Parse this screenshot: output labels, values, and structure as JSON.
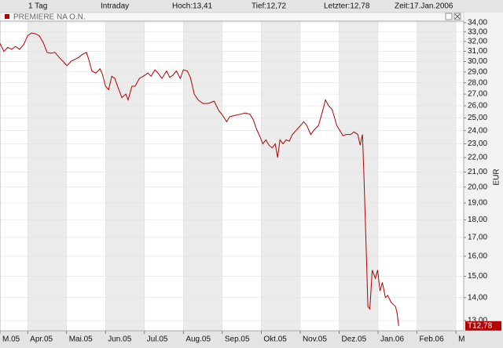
{
  "chart_data": {
    "type": "line",
    "toolbar": [
      "1 Tag",
      "Intraday",
      "Hoch:13,41",
      "Tief:12,72",
      "Letzter:12,78",
      "Zeit:17.Jan.2006"
    ],
    "title": "PREMIERE NA O.N.",
    "y_label": "EUR",
    "last_label": "T12,78",
    "color": "#b40000",
    "log_y": true,
    "grid": true,
    "x": [
      0.29,
      0.39,
      0.49,
      0.59,
      0.69,
      0.79,
      0.9,
      1.0,
      1.1,
      1.2,
      1.3,
      1.4,
      1.5,
      1.6,
      1.7,
      1.81,
      1.91,
      2.01,
      2.11,
      2.21,
      2.31,
      2.41,
      2.51,
      2.57,
      2.65,
      2.75,
      2.86,
      2.92,
      3.0,
      3.08,
      3.16,
      3.24,
      3.32,
      3.42,
      3.52,
      3.58,
      3.68,
      3.76,
      3.87,
      3.97,
      4.09,
      4.17,
      4.27,
      4.37,
      4.45,
      4.57,
      4.65,
      4.73,
      4.82,
      4.92,
      5.0,
      5.1,
      5.18,
      5.28,
      5.38,
      5.5,
      5.64,
      5.79,
      5.91,
      6.01,
      6.11,
      6.19,
      6.31,
      6.45,
      6.59,
      6.71,
      6.79,
      6.88,
      6.96,
      7.04,
      7.12,
      7.2,
      7.28,
      7.36,
      7.42,
      7.48,
      7.56,
      7.64,
      7.72,
      7.8,
      7.89,
      8.01,
      8.09,
      8.17,
      8.27,
      8.37,
      8.47,
      8.57,
      8.65,
      8.73,
      8.82,
      8.94,
      9.02,
      9.1,
      9.18,
      9.3,
      9.38,
      9.48,
      9.54,
      9.6,
      9.64,
      9.7,
      9.74,
      9.79,
      9.85,
      9.93,
      9.99,
      10.05,
      10.11,
      10.19,
      10.25,
      10.33,
      10.39,
      10.45,
      10.49,
      10.53
    ],
    "values": [
      31.8,
      31.0,
      31.4,
      31.2,
      31.5,
      31.2,
      31.7,
      32.6,
      32.9,
      32.8,
      32.6,
      31.9,
      30.9,
      30.8,
      30.9,
      30.4,
      30.0,
      29.6,
      30.0,
      30.2,
      30.4,
      30.7,
      30.9,
      30.2,
      29.1,
      28.9,
      29.3,
      28.8,
      27.7,
      27.4,
      28.6,
      28.4,
      27.6,
      26.7,
      27.0,
      26.5,
      27.7,
      27.7,
      28.4,
      28.6,
      28.9,
      28.6,
      29.2,
      28.8,
      28.4,
      29.1,
      28.5,
      28.7,
      29.1,
      28.4,
      29.2,
      29.1,
      28.5,
      27.0,
      26.5,
      26.2,
      26.2,
      26.4,
      25.6,
      25.2,
      24.7,
      25.1,
      25.2,
      25.3,
      25.4,
      25.3,
      24.9,
      24.1,
      23.6,
      23.0,
      23.3,
      22.9,
      22.7,
      23.0,
      22.0,
      23.3,
      23.0,
      23.3,
      23.2,
      23.7,
      24.0,
      24.4,
      24.7,
      24.4,
      23.7,
      24.1,
      24.4,
      25.5,
      26.5,
      26.0,
      25.7,
      24.4,
      24.0,
      23.6,
      23.7,
      23.7,
      23.9,
      23.7,
      22.9,
      23.7,
      20.5,
      16.0,
      13.6,
      13.5,
      15.3,
      14.9,
      15.3,
      14.3,
      14.7,
      14.0,
      14.1,
      13.8,
      13.7,
      13.6,
      13.3,
      12.78
    ],
    "xlim": [
      0.29,
      12.2
    ],
    "xticks": [
      {
        "value": 0.29,
        "label": "M.05"
      },
      {
        "value": 1,
        "label": "Apr.05"
      },
      {
        "value": 2,
        "label": "Mai.05"
      },
      {
        "value": 3,
        "label": "Jun.05"
      },
      {
        "value": 4,
        "label": "Jul.05"
      },
      {
        "value": 5,
        "label": "Aug.05"
      },
      {
        "value": 6,
        "label": "Sep.05"
      },
      {
        "value": 7,
        "label": "Okt.05"
      },
      {
        "value": 8,
        "label": "Nov.05"
      },
      {
        "value": 9,
        "label": "Dez.05"
      },
      {
        "value": 10,
        "label": "Jan.06"
      },
      {
        "value": 11,
        "label": "Feb.06"
      },
      {
        "value": 12,
        "label": "M"
      }
    ],
    "ylim": [
      12.58,
      34.17
    ],
    "yticks": [
      {
        "value": 13,
        "label": "13,00"
      },
      {
        "value": 14,
        "label": "14,00"
      },
      {
        "value": 15,
        "label": "15,00"
      },
      {
        "value": 16,
        "label": "16,00"
      },
      {
        "value": 17,
        "label": "17,00"
      },
      {
        "value": 18,
        "label": "18,00"
      },
      {
        "value": 19,
        "label": "19,00"
      },
      {
        "value": 20,
        "label": "20,00"
      },
      {
        "value": 21,
        "label": "21,00"
      },
      {
        "value": 22,
        "label": "22,00"
      },
      {
        "value": 23,
        "label": "23,00"
      },
      {
        "value": 24,
        "label": "24,00"
      },
      {
        "value": 25,
        "label": "25,00"
      },
      {
        "value": 26,
        "label": "26,00"
      },
      {
        "value": 27,
        "label": "27,00"
      },
      {
        "value": 28,
        "label": "28,00"
      },
      {
        "value": 29,
        "label": "29,00"
      },
      {
        "value": 30,
        "label": "30,00"
      },
      {
        "value": 31,
        "label": "31,00"
      },
      {
        "value": 32,
        "label": "32,00"
      },
      {
        "value": 33,
        "label": "33,00"
      },
      {
        "value": 34,
        "label": "34,00"
      }
    ]
  }
}
